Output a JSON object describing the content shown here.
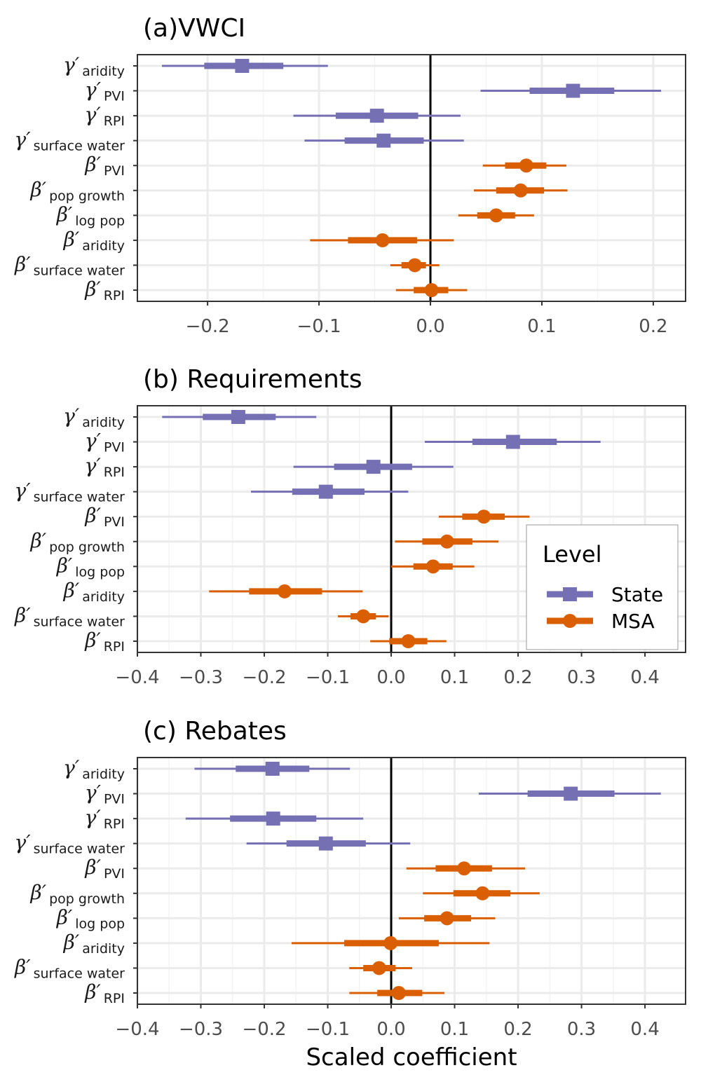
{
  "colors": {
    "State": "#7570b3",
    "MSA": "#d95f02",
    "grid": "#ebebeb"
  },
  "chart_data": [
    {
      "type": "forest",
      "title": "(a)VWCI",
      "xlim": [
        -0.263,
        0.229
      ],
      "xticks": [
        -0.2,
        -0.1,
        0.0,
        0.1,
        0.2
      ],
      "xtick_labels": [
        "−0.2",
        "−0.1",
        "0.0",
        "0.1",
        "0.2"
      ],
      "grid": true,
      "rows": [
        {
          "sym": "γ′",
          "sub": "aridity",
          "level": "State",
          "est": -0.169,
          "inner": [
            -0.203,
            -0.132
          ],
          "outer": [
            -0.241,
            -0.092
          ]
        },
        {
          "sym": "γ′",
          "sub": "PVI",
          "level": "State",
          "est": 0.128,
          "inner": [
            0.089,
            0.165
          ],
          "outer": [
            0.045,
            0.207
          ]
        },
        {
          "sym": "γ′",
          "sub": "RPI",
          "level": "State",
          "est": -0.048,
          "inner": [
            -0.085,
            -0.011
          ],
          "outer": [
            -0.123,
            0.027
          ]
        },
        {
          "sym": "γ′",
          "sub": "surface water",
          "level": "State",
          "est": -0.042,
          "inner": [
            -0.077,
            -0.006
          ],
          "outer": [
            -0.113,
            0.03
          ]
        },
        {
          "sym": "β′",
          "sub": "PVI",
          "level": "MSA",
          "est": 0.086,
          "inner": [
            0.067,
            0.104
          ],
          "outer": [
            0.047,
            0.122
          ]
        },
        {
          "sym": "β′",
          "sub": "pop growth",
          "level": "MSA",
          "est": 0.081,
          "inner": [
            0.059,
            0.102
          ],
          "outer": [
            0.039,
            0.123
          ]
        },
        {
          "sym": "β′",
          "sub": "log pop",
          "level": "MSA",
          "est": 0.059,
          "inner": [
            0.042,
            0.076
          ],
          "outer": [
            0.025,
            0.093
          ]
        },
        {
          "sym": "β′",
          "sub": "aridity",
          "level": "MSA",
          "est": -0.043,
          "inner": [
            -0.074,
            -0.012
          ],
          "outer": [
            -0.108,
            0.021
          ]
        },
        {
          "sym": "β′",
          "sub": "surface water",
          "level": "MSA",
          "est": -0.014,
          "inner": [
            -0.026,
            -0.004
          ],
          "outer": [
            -0.036,
            0.008
          ]
        },
        {
          "sym": "β′",
          "sub": "RPI",
          "level": "MSA",
          "est": 0.001,
          "inner": [
            -0.015,
            0.016
          ],
          "outer": [
            -0.031,
            0.033
          ]
        }
      ]
    },
    {
      "type": "forest",
      "title": "(b) Requirements",
      "xlim": [
        -0.4,
        0.464
      ],
      "xticks": [
        -0.4,
        -0.3,
        -0.2,
        -0.1,
        0.0,
        0.1,
        0.2,
        0.3,
        0.4
      ],
      "xtick_labels": [
        "−0.4",
        "−0.3",
        "−0.2",
        "−0.1",
        "0.0",
        "0.1",
        "0.2",
        "0.3",
        "0.4"
      ],
      "grid": true,
      "legend": {
        "title": "Level",
        "items": [
          "State",
          "MSA"
        ],
        "placement": "right"
      },
      "rows": [
        {
          "sym": "γ′",
          "sub": "aridity",
          "level": "State",
          "est": -0.241,
          "inner": [
            -0.297,
            -0.182
          ],
          "outer": [
            -0.361,
            -0.118
          ]
        },
        {
          "sym": "γ′",
          "sub": "PVI",
          "level": "State",
          "est": 0.192,
          "inner": [
            0.128,
            0.261
          ],
          "outer": [
            0.053,
            0.33
          ]
        },
        {
          "sym": "γ′",
          "sub": "RPI",
          "level": "State",
          "est": -0.028,
          "inner": [
            -0.09,
            0.033
          ],
          "outer": [
            -0.154,
            0.098
          ]
        },
        {
          "sym": "γ′",
          "sub": "surface water",
          "level": "State",
          "est": -0.103,
          "inner": [
            -0.156,
            -0.042
          ],
          "outer": [
            -0.221,
            0.027
          ]
        },
        {
          "sym": "β′",
          "sub": "PVI",
          "level": "MSA",
          "est": 0.146,
          "inner": [
            0.112,
            0.179
          ],
          "outer": [
            0.075,
            0.218
          ]
        },
        {
          "sym": "β′",
          "sub": "pop growth",
          "level": "MSA",
          "est": 0.088,
          "inner": [
            0.049,
            0.128
          ],
          "outer": [
            0.006,
            0.169
          ]
        },
        {
          "sym": "β′",
          "sub": "log pop",
          "level": "MSA",
          "est": 0.066,
          "inner": [
            0.035,
            0.097
          ],
          "outer": [
            0.0,
            0.131
          ]
        },
        {
          "sym": "β′",
          "sub": "aridity",
          "level": "MSA",
          "est": -0.168,
          "inner": [
            -0.224,
            -0.109
          ],
          "outer": [
            -0.287,
            -0.045
          ]
        },
        {
          "sym": "β′",
          "sub": "surface water",
          "level": "MSA",
          "est": -0.044,
          "inner": [
            -0.064,
            -0.024
          ],
          "outer": [
            -0.084,
            -0.004
          ]
        },
        {
          "sym": "β′",
          "sub": "RPI",
          "level": "MSA",
          "est": 0.027,
          "inner": [
            -0.003,
            0.057
          ],
          "outer": [
            -0.033,
            0.087
          ]
        }
      ]
    },
    {
      "type": "forest",
      "title": "(c) Rebates",
      "xlabel": "Scaled coefficient",
      "xlim": [
        -0.4,
        0.464
      ],
      "xticks": [
        -0.4,
        -0.3,
        -0.2,
        -0.1,
        0.0,
        0.1,
        0.2,
        0.3,
        0.4
      ],
      "xtick_labels": [
        "−0.4",
        "−0.3",
        "−0.2",
        "−0.1",
        "0.0",
        "0.1",
        "0.2",
        "0.3",
        "0.4"
      ],
      "grid": true,
      "rows": [
        {
          "sym": "γ′",
          "sub": "aridity",
          "level": "State",
          "est": -0.187,
          "inner": [
            -0.245,
            -0.129
          ],
          "outer": [
            -0.31,
            -0.065
          ]
        },
        {
          "sym": "γ′",
          "sub": "PVI",
          "level": "State",
          "est": 0.283,
          "inner": [
            0.215,
            0.352
          ],
          "outer": [
            0.138,
            0.425
          ]
        },
        {
          "sym": "γ′",
          "sub": "RPI",
          "level": "State",
          "est": -0.186,
          "inner": [
            -0.254,
            -0.118
          ],
          "outer": [
            -0.324,
            -0.044
          ]
        },
        {
          "sym": "γ′",
          "sub": "surface water",
          "level": "State",
          "est": -0.103,
          "inner": [
            -0.165,
            -0.04
          ],
          "outer": [
            -0.228,
            0.03
          ]
        },
        {
          "sym": "β′",
          "sub": "PVI",
          "level": "MSA",
          "est": 0.115,
          "inner": [
            0.07,
            0.159
          ],
          "outer": [
            0.024,
            0.211
          ]
        },
        {
          "sym": "β′",
          "sub": "pop growth",
          "level": "MSA",
          "est": 0.144,
          "inner": [
            0.098,
            0.188
          ],
          "outer": [
            0.05,
            0.234
          ]
        },
        {
          "sym": "β′",
          "sub": "log pop",
          "level": "MSA",
          "est": 0.088,
          "inner": [
            0.052,
            0.126
          ],
          "outer": [
            0.012,
            0.164
          ]
        },
        {
          "sym": "β′",
          "sub": "aridity",
          "level": "MSA",
          "est": -0.001,
          "inner": [
            -0.074,
            0.075
          ],
          "outer": [
            -0.157,
            0.155
          ]
        },
        {
          "sym": "β′",
          "sub": "surface water",
          "level": "MSA",
          "est": -0.019,
          "inner": [
            -0.044,
            0.007
          ],
          "outer": [
            -0.066,
            0.033
          ]
        },
        {
          "sym": "β′",
          "sub": "RPI",
          "level": "MSA",
          "est": 0.012,
          "inner": [
            -0.022,
            0.049
          ],
          "outer": [
            -0.066,
            0.084
          ]
        }
      ]
    }
  ]
}
